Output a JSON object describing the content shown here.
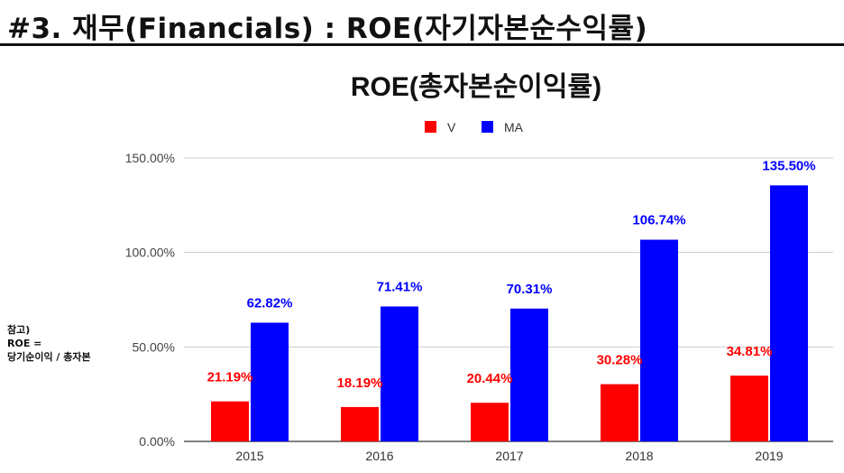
{
  "slide": {
    "title": "#3. 재무(Financials) : ROE(자기자본순수익률)",
    "note_lines": [
      "참고)",
      "ROE =",
      "당기순이익 / 총자본"
    ]
  },
  "colors": {
    "V": "#ff0000",
    "MA": "#0000ff"
  },
  "chart_data": {
    "type": "bar",
    "title": "ROE(총자본순이익률)",
    "categories": [
      "2015",
      "2016",
      "2017",
      "2018",
      "2019"
    ],
    "series": [
      {
        "name": "V",
        "values": [
          21.19,
          18.19,
          20.44,
          30.28,
          34.81
        ],
        "labels": [
          "21.19%",
          "18.19%",
          "20.44%",
          "30.28%",
          "34.81%"
        ]
      },
      {
        "name": "MA",
        "values": [
          62.82,
          71.41,
          70.31,
          106.74,
          135.5
        ],
        "labels": [
          "62.82%",
          "71.41%",
          "70.31%",
          "106.74%",
          "135.50%"
        ]
      }
    ],
    "yticks": [
      "0.00%",
      "50.00%",
      "100.00%",
      "150.00%"
    ],
    "ylim": [
      0,
      150
    ],
    "grid": true,
    "legend_position": "top-center"
  }
}
